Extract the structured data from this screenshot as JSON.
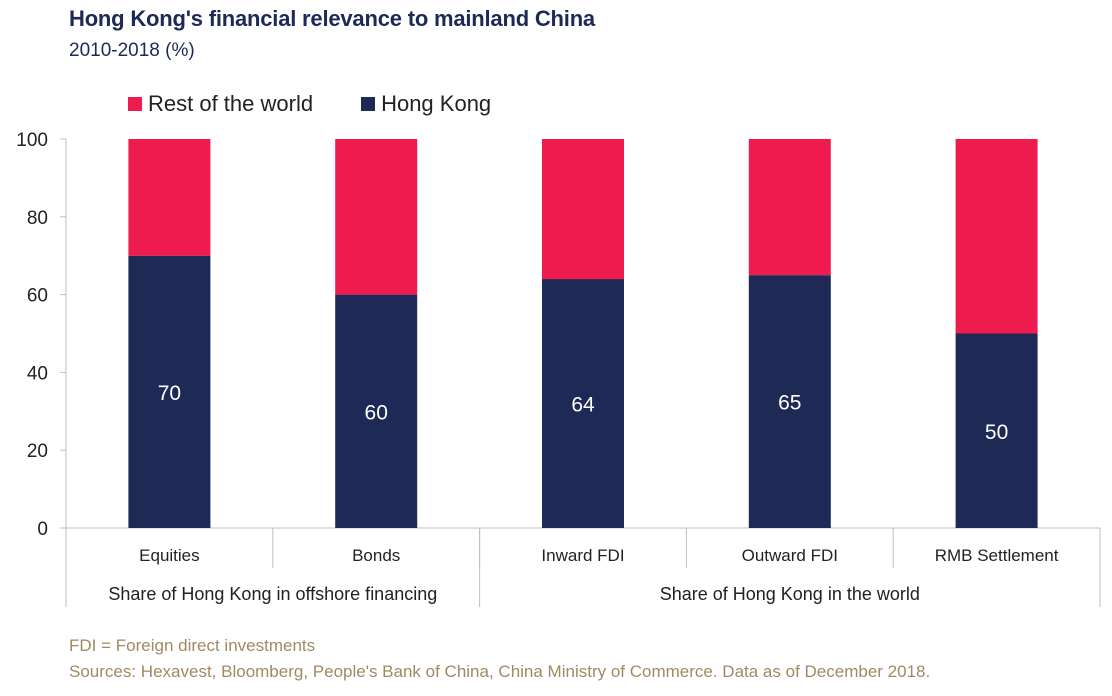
{
  "title": "Hong Kong's financial relevance to mainland China",
  "subtitle": "2010-2018 (%)",
  "legend": [
    {
      "label": "Rest of the world",
      "color": "#ee1b4f"
    },
    {
      "label": "Hong Kong",
      "color": "#1e2a55"
    }
  ],
  "footnotes": {
    "fdi": "FDI =  Foreign direct investments",
    "sources": "Sources: Hexavest, Bloomberg, People's Bank of China, China Ministry of Commerce. Data as of December 2018."
  },
  "chart_data": {
    "type": "bar",
    "stacked": true,
    "categories": [
      "Equities",
      "Bonds",
      "Inward FDI",
      "Outward FDI",
      "RMB Settlement"
    ],
    "groups": [
      {
        "label": "Share of Hong Kong in offshore financing",
        "categories": [
          "Equities",
          "Bonds"
        ]
      },
      {
        "label": "Share of Hong Kong in the world",
        "categories": [
          "Inward FDI",
          "Outward FDI",
          "RMB Settlement"
        ]
      }
    ],
    "series": [
      {
        "name": "Hong Kong",
        "values": [
          70,
          60,
          64,
          65,
          50
        ],
        "color": "#1e2a55",
        "data_labels": [
          "70",
          "60",
          "64",
          "65",
          "50"
        ]
      },
      {
        "name": "Rest of the world",
        "values": [
          30,
          40,
          36,
          35,
          50
        ],
        "color": "#ee1b4f"
      }
    ],
    "ylim": [
      0,
      100
    ],
    "yticks": [
      0,
      20,
      40,
      60,
      80,
      100
    ],
    "grid": false,
    "legend_position": "top-left"
  }
}
